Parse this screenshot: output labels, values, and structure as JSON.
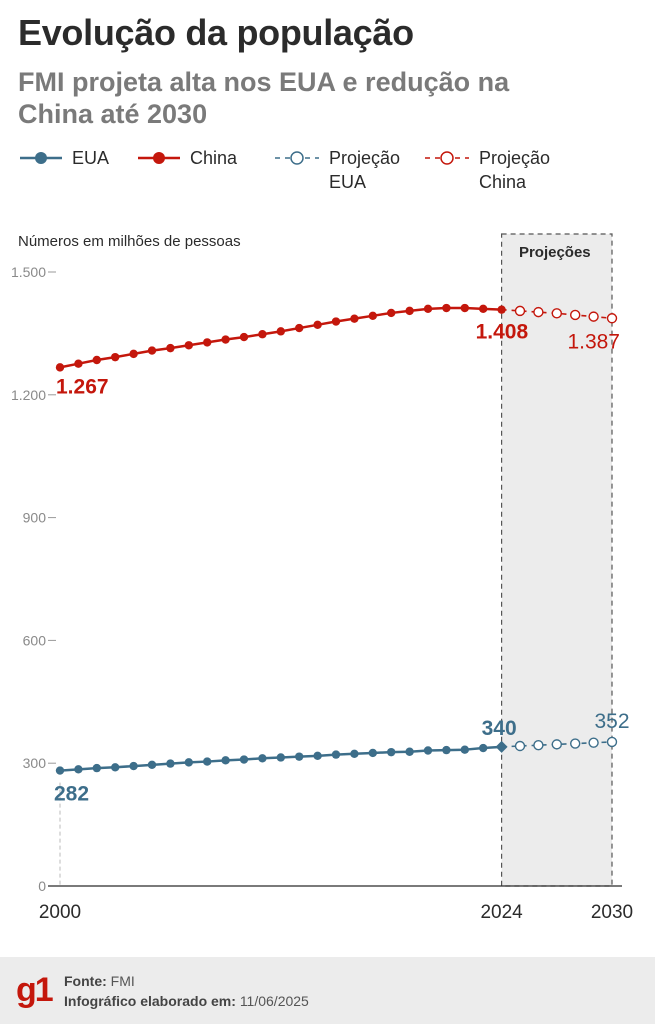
{
  "header": {
    "title": "Evolução da população",
    "subtitle": "FMI projeta alta nos EUA e redução na China até 2030"
  },
  "legend": {
    "usa": "EUA",
    "china": "China",
    "proj_usa": [
      "Projeção",
      "EUA"
    ],
    "proj_china": [
      "Projeção",
      "China"
    ]
  },
  "colors": {
    "usa": "#3d6e8a",
    "china": "#c4170c",
    "band": "#ececec",
    "axis": "#999999"
  },
  "chart_data": {
    "type": "line",
    "unit_note": "Números em milhões de pessoas",
    "shaded_region": {
      "label": "Projeções",
      "from": 2024,
      "to": 2030
    },
    "x_tick_labels": [
      "2000",
      "2024",
      "2030"
    ],
    "y_tick_labels": [
      "0",
      "300",
      "600",
      "900",
      "1.200",
      "1.500"
    ],
    "y_ticks": [
      0,
      300,
      600,
      900,
      1200,
      1500
    ],
    "ylim": [
      0,
      1500
    ],
    "xlim": [
      2000,
      2030
    ],
    "series": [
      {
        "name": "China",
        "key": "china",
        "x": [
          2000,
          2001,
          2002,
          2003,
          2004,
          2005,
          2006,
          2007,
          2008,
          2009,
          2010,
          2011,
          2012,
          2013,
          2014,
          2015,
          2016,
          2017,
          2018,
          2019,
          2020,
          2021,
          2022,
          2023,
          2024
        ],
        "values": [
          1267,
          1276,
          1285,
          1292,
          1300,
          1308,
          1314,
          1321,
          1328,
          1335,
          1341,
          1348,
          1355,
          1363,
          1371,
          1379,
          1386,
          1393,
          1400,
          1405,
          1410,
          1412,
          1412,
          1410,
          1408
        ],
        "labels": {
          "2000": "1.267",
          "2024": "1.408"
        }
      },
      {
        "name": "Projeção China",
        "key": "proj_china",
        "x": [
          2025,
          2026,
          2027,
          2028,
          2029,
          2030
        ],
        "values": [
          1405,
          1402,
          1399,
          1395,
          1391,
          1387
        ],
        "labels": {
          "2030": "1.387"
        }
      },
      {
        "name": "EUA",
        "key": "usa",
        "x": [
          2000,
          2001,
          2002,
          2003,
          2004,
          2005,
          2006,
          2007,
          2008,
          2009,
          2010,
          2011,
          2012,
          2013,
          2014,
          2015,
          2016,
          2017,
          2018,
          2019,
          2020,
          2021,
          2022,
          2023,
          2024
        ],
        "values": [
          282,
          285,
          288,
          290,
          293,
          296,
          299,
          302,
          304,
          307,
          309,
          312,
          314,
          316,
          318,
          321,
          323,
          325,
          327,
          328,
          331,
          332,
          333,
          337,
          340
        ],
        "labels": {
          "2000": "282",
          "2024": "340"
        }
      },
      {
        "name": "Projeção EUA",
        "key": "proj_usa",
        "x": [
          2025,
          2026,
          2027,
          2028,
          2029,
          2030
        ],
        "values": [
          342,
          344,
          346,
          348,
          350,
          352
        ],
        "labels": {
          "2030": "352"
        }
      }
    ]
  },
  "footer": {
    "logo": "g1",
    "source_label": "Fonte:",
    "source_value": "FMI",
    "date_label": "Infográfico elaborado em:",
    "date_value": "11/06/2025"
  }
}
